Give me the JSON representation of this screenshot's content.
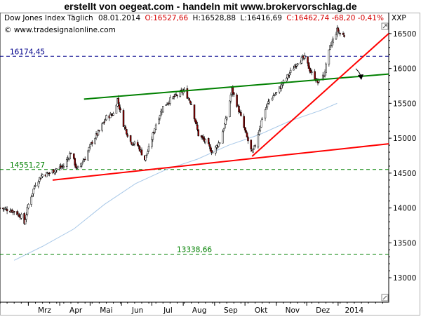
{
  "header": {
    "title": "erstellt von oegeat.com  - handeln mit  www.brokervorschlag.de"
  },
  "chart_data": {
    "type": "candlestick",
    "info": {
      "name": "Dow Jones Index Täglich",
      "date": "08.01.2014",
      "open": "O:16527,66",
      "high": "H:16528,88",
      "low": "L:16416,69",
      "close_change": "C:16462,74 -68,20 -0,41%",
      "symbol": "XXP",
      "copyright": "© www.tradesignalonline.com"
    },
    "ylim": [
      12650,
      16800
    ],
    "y_ticks": [
      13000,
      13500,
      14000,
      14500,
      15000,
      15500,
      16000,
      16500
    ],
    "y_tick_labels": [
      "13000",
      "13500",
      "14000",
      "14500",
      "15000",
      "15500",
      "16000",
      "16500"
    ],
    "x_labels": [
      {
        "label": "Mrz",
        "date": "2013-03"
      },
      {
        "label": "Apr",
        "date": "2013-04"
      },
      {
        "label": "Mai",
        "date": "2013-05"
      },
      {
        "label": "Jun",
        "date": "2013-06"
      },
      {
        "label": "Jul",
        "date": "2013-07"
      },
      {
        "label": "Aug",
        "date": "2013-08"
      },
      {
        "label": "Sep",
        "date": "2013-09"
      },
      {
        "label": "Okt",
        "date": "2013-10"
      },
      {
        "label": "Nov",
        "date": "2013-11"
      },
      {
        "label": "Dez",
        "date": "2013-12"
      },
      {
        "label": "2014",
        "date": "2014-01"
      }
    ],
    "horizontal_levels": [
      {
        "value": 16174.45,
        "label": "16174,45",
        "color": "#00008b"
      },
      {
        "value": 14551.27,
        "label": "14551,27",
        "color": "#008000"
      },
      {
        "value": 13338.66,
        "label": "13338,66",
        "color": "#008000"
      }
    ],
    "price_path": [
      [
        "2013-02-01",
        14000
      ],
      [
        "2013-02-08",
        13980
      ],
      [
        "2013-02-15",
        13950
      ],
      [
        "2013-02-22",
        13880
      ],
      [
        "2013-02-25",
        13780
      ],
      [
        "2013-03-01",
        14050
      ],
      [
        "2013-03-08",
        14350
      ],
      [
        "2013-03-15",
        14480
      ],
      [
        "2013-03-22",
        14500
      ],
      [
        "2013-03-29",
        14560
      ],
      [
        "2013-04-05",
        14600
      ],
      [
        "2013-04-12",
        14800
      ],
      [
        "2013-04-18",
        14550
      ],
      [
        "2013-04-26",
        14720
      ],
      [
        "2013-05-03",
        14950
      ],
      [
        "2013-05-10",
        15100
      ],
      [
        "2013-05-17",
        15300
      ],
      [
        "2013-05-24",
        15350
      ],
      [
        "2013-05-28",
        15560
      ],
      [
        "2013-06-03",
        15200
      ],
      [
        "2013-06-10",
        14950
      ],
      [
        "2013-06-17",
        14900
      ],
      [
        "2013-06-24",
        14700
      ],
      [
        "2013-06-28",
        14850
      ],
      [
        "2013-07-05",
        15200
      ],
      [
        "2013-07-12",
        15450
      ],
      [
        "2013-07-19",
        15550
      ],
      [
        "2013-07-26",
        15620
      ],
      [
        "2013-08-02",
        15680
      ],
      [
        "2013-08-09",
        15500
      ],
      [
        "2013-08-16",
        15050
      ],
      [
        "2013-08-23",
        14950
      ],
      [
        "2013-08-30",
        14800
      ],
      [
        "2013-09-06",
        14950
      ],
      [
        "2013-09-13",
        15300
      ],
      [
        "2013-09-18",
        15700
      ],
      [
        "2013-09-25",
        15400
      ],
      [
        "2013-10-01",
        15100
      ],
      [
        "2013-10-08",
        14780
      ],
      [
        "2013-10-11",
        14900
      ],
      [
        "2013-10-18",
        15300
      ],
      [
        "2013-10-25",
        15550
      ],
      [
        "2013-11-01",
        15650
      ],
      [
        "2013-11-08",
        15800
      ],
      [
        "2013-11-15",
        15950
      ],
      [
        "2013-11-22",
        16100
      ],
      [
        "2013-11-29",
        16150
      ],
      [
        "2013-12-05",
        15950
      ],
      [
        "2013-12-12",
        15800
      ],
      [
        "2013-12-18",
        15900
      ],
      [
        "2013-12-24",
        16300
      ],
      [
        "2013-12-31",
        16550
      ],
      [
        "2014-01-03",
        16500
      ],
      [
        "2014-01-08",
        16462
      ]
    ],
    "moving_average": [
      [
        "2013-02-15",
        13250
      ],
      [
        "2013-03-15",
        13450
      ],
      [
        "2013-04-15",
        13700
      ],
      [
        "2013-05-15",
        14050
      ],
      [
        "2013-06-15",
        14350
      ],
      [
        "2013-07-15",
        14550
      ],
      [
        "2013-08-15",
        14700
      ],
      [
        "2013-09-15",
        14900
      ],
      [
        "2013-10-15",
        15050
      ],
      [
        "2013-11-15",
        15250
      ],
      [
        "2013-12-15",
        15400
      ],
      [
        "2013-12-31",
        15500
      ]
    ],
    "trendlines": [
      {
        "name": "lower-support",
        "color": "#ff0000",
        "from": [
          "2013-03-25",
          14400
        ],
        "to": [
          "2014-02-20",
          14920
        ]
      },
      {
        "name": "upper-channel",
        "color": "#008000",
        "from": [
          "2013-04-25",
          15560
        ],
        "to": [
          "2014-02-20",
          15920
        ]
      },
      {
        "name": "steep-support",
        "color": "#ff0000",
        "from": [
          "2013-10-08",
          14740
        ],
        "to": [
          "2014-02-20",
          16500
        ]
      }
    ]
  }
}
